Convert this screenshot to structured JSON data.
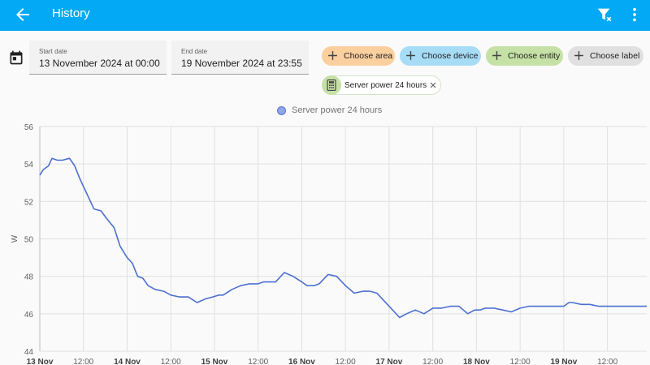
{
  "header": {
    "title": "History",
    "back_icon": "arrow-left-icon",
    "clear_filter_icon": "filter-remove-icon",
    "menu_icon": "dots-vertical-icon"
  },
  "date_range": {
    "icon": "calendar-icon",
    "start": {
      "label": "Start date",
      "value": "13 November 2024 at 00:00"
    },
    "end": {
      "label": "End date",
      "value": "19 November 2024 at 23:55"
    }
  },
  "targets": {
    "area": {
      "label": "Choose area",
      "color": "#fbcf9e"
    },
    "device": {
      "label": "Choose device",
      "color": "#a6dcf6"
    },
    "entity": {
      "label": "Choose entity",
      "color": "#c5e1a5"
    },
    "label": {
      "label": "Choose label",
      "color": "#e0e0e0"
    }
  },
  "selected_entity": {
    "label": "Server power 24 hours",
    "icon": "calculator-icon"
  },
  "chart_data": {
    "type": "line",
    "ylabel": "W",
    "ylim": [
      44,
      56
    ],
    "yticks": [
      44,
      46,
      48,
      50,
      52,
      54,
      56
    ],
    "xlim": [
      0,
      6.95
    ],
    "xticks": [
      {
        "x": 0,
        "label": "13 Nov"
      },
      {
        "x": 0.5,
        "label": "12:00"
      },
      {
        "x": 1,
        "label": "14 Nov"
      },
      {
        "x": 1.5,
        "label": "12:00"
      },
      {
        "x": 2,
        "label": "15 Nov"
      },
      {
        "x": 2.5,
        "label": "12:00"
      },
      {
        "x": 3,
        "label": "16 Nov"
      },
      {
        "x": 3.5,
        "label": "12:00"
      },
      {
        "x": 4,
        "label": "17 Nov"
      },
      {
        "x": 4.5,
        "label": "12:00"
      },
      {
        "x": 5,
        "label": "18 Nov"
      },
      {
        "x": 5.5,
        "label": "12:00"
      },
      {
        "x": 6,
        "label": "19 Nov"
      },
      {
        "x": 6.5,
        "label": "12:00"
      }
    ],
    "grid": true,
    "legend": "top-center",
    "series": [
      {
        "name": "Server power 24 hours",
        "color": "#4c6fd1",
        "x": [
          0,
          0.04,
          0.1,
          0.14,
          0.2,
          0.26,
          0.34,
          0.4,
          0.45,
          0.5,
          0.55,
          0.62,
          0.7,
          0.78,
          0.85,
          0.92,
          1.0,
          1.06,
          1.12,
          1.18,
          1.24,
          1.32,
          1.42,
          1.5,
          1.6,
          1.7,
          1.8,
          1.9,
          1.98,
          2.05,
          2.1,
          2.2,
          2.3,
          2.4,
          2.5,
          2.56,
          2.7,
          2.8,
          2.9,
          3.0,
          3.06,
          3.14,
          3.2,
          3.3,
          3.4,
          3.5,
          3.6,
          3.7,
          3.78,
          3.86,
          3.94,
          4.0,
          4.06,
          4.12,
          4.2,
          4.3,
          4.4,
          4.5,
          4.6,
          4.7,
          4.8,
          4.9,
          4.98,
          5.04,
          5.1,
          5.16,
          5.2,
          5.3,
          5.4,
          5.5,
          5.6,
          5.7,
          5.8,
          5.9,
          6.0,
          6.06,
          6.1,
          6.2,
          6.3,
          6.4,
          6.5,
          6.6,
          6.7,
          6.76,
          6.82,
          6.86,
          6.95
        ],
        "y": [
          53.4,
          53.7,
          53.9,
          54.3,
          54.2,
          54.2,
          54.3,
          53.9,
          53.3,
          52.8,
          52.3,
          51.6,
          51.5,
          51.0,
          50.6,
          49.6,
          49.0,
          48.7,
          48.0,
          47.9,
          47.5,
          47.3,
          47.2,
          47.0,
          46.9,
          46.9,
          46.6,
          46.8,
          46.9,
          47.0,
          47.0,
          47.3,
          47.5,
          47.6,
          47.6,
          47.7,
          47.7,
          48.2,
          48.0,
          47.7,
          47.5,
          47.5,
          47.6,
          48.1,
          48.0,
          47.5,
          47.1,
          47.2,
          47.2,
          47.1,
          46.7,
          46.4,
          46.1,
          45.8,
          46.0,
          46.2,
          46.0,
          46.3,
          46.3,
          46.4,
          46.4,
          46.0,
          46.2,
          46.2,
          46.3,
          46.3,
          46.3,
          46.2,
          46.1,
          46.3,
          46.4,
          46.4,
          46.4,
          46.4,
          46.4,
          46.6,
          46.6,
          46.5,
          46.5,
          46.4,
          46.4,
          46.4,
          46.4,
          46.4,
          46.4,
          46.4,
          46.4
        ]
      }
    ]
  }
}
